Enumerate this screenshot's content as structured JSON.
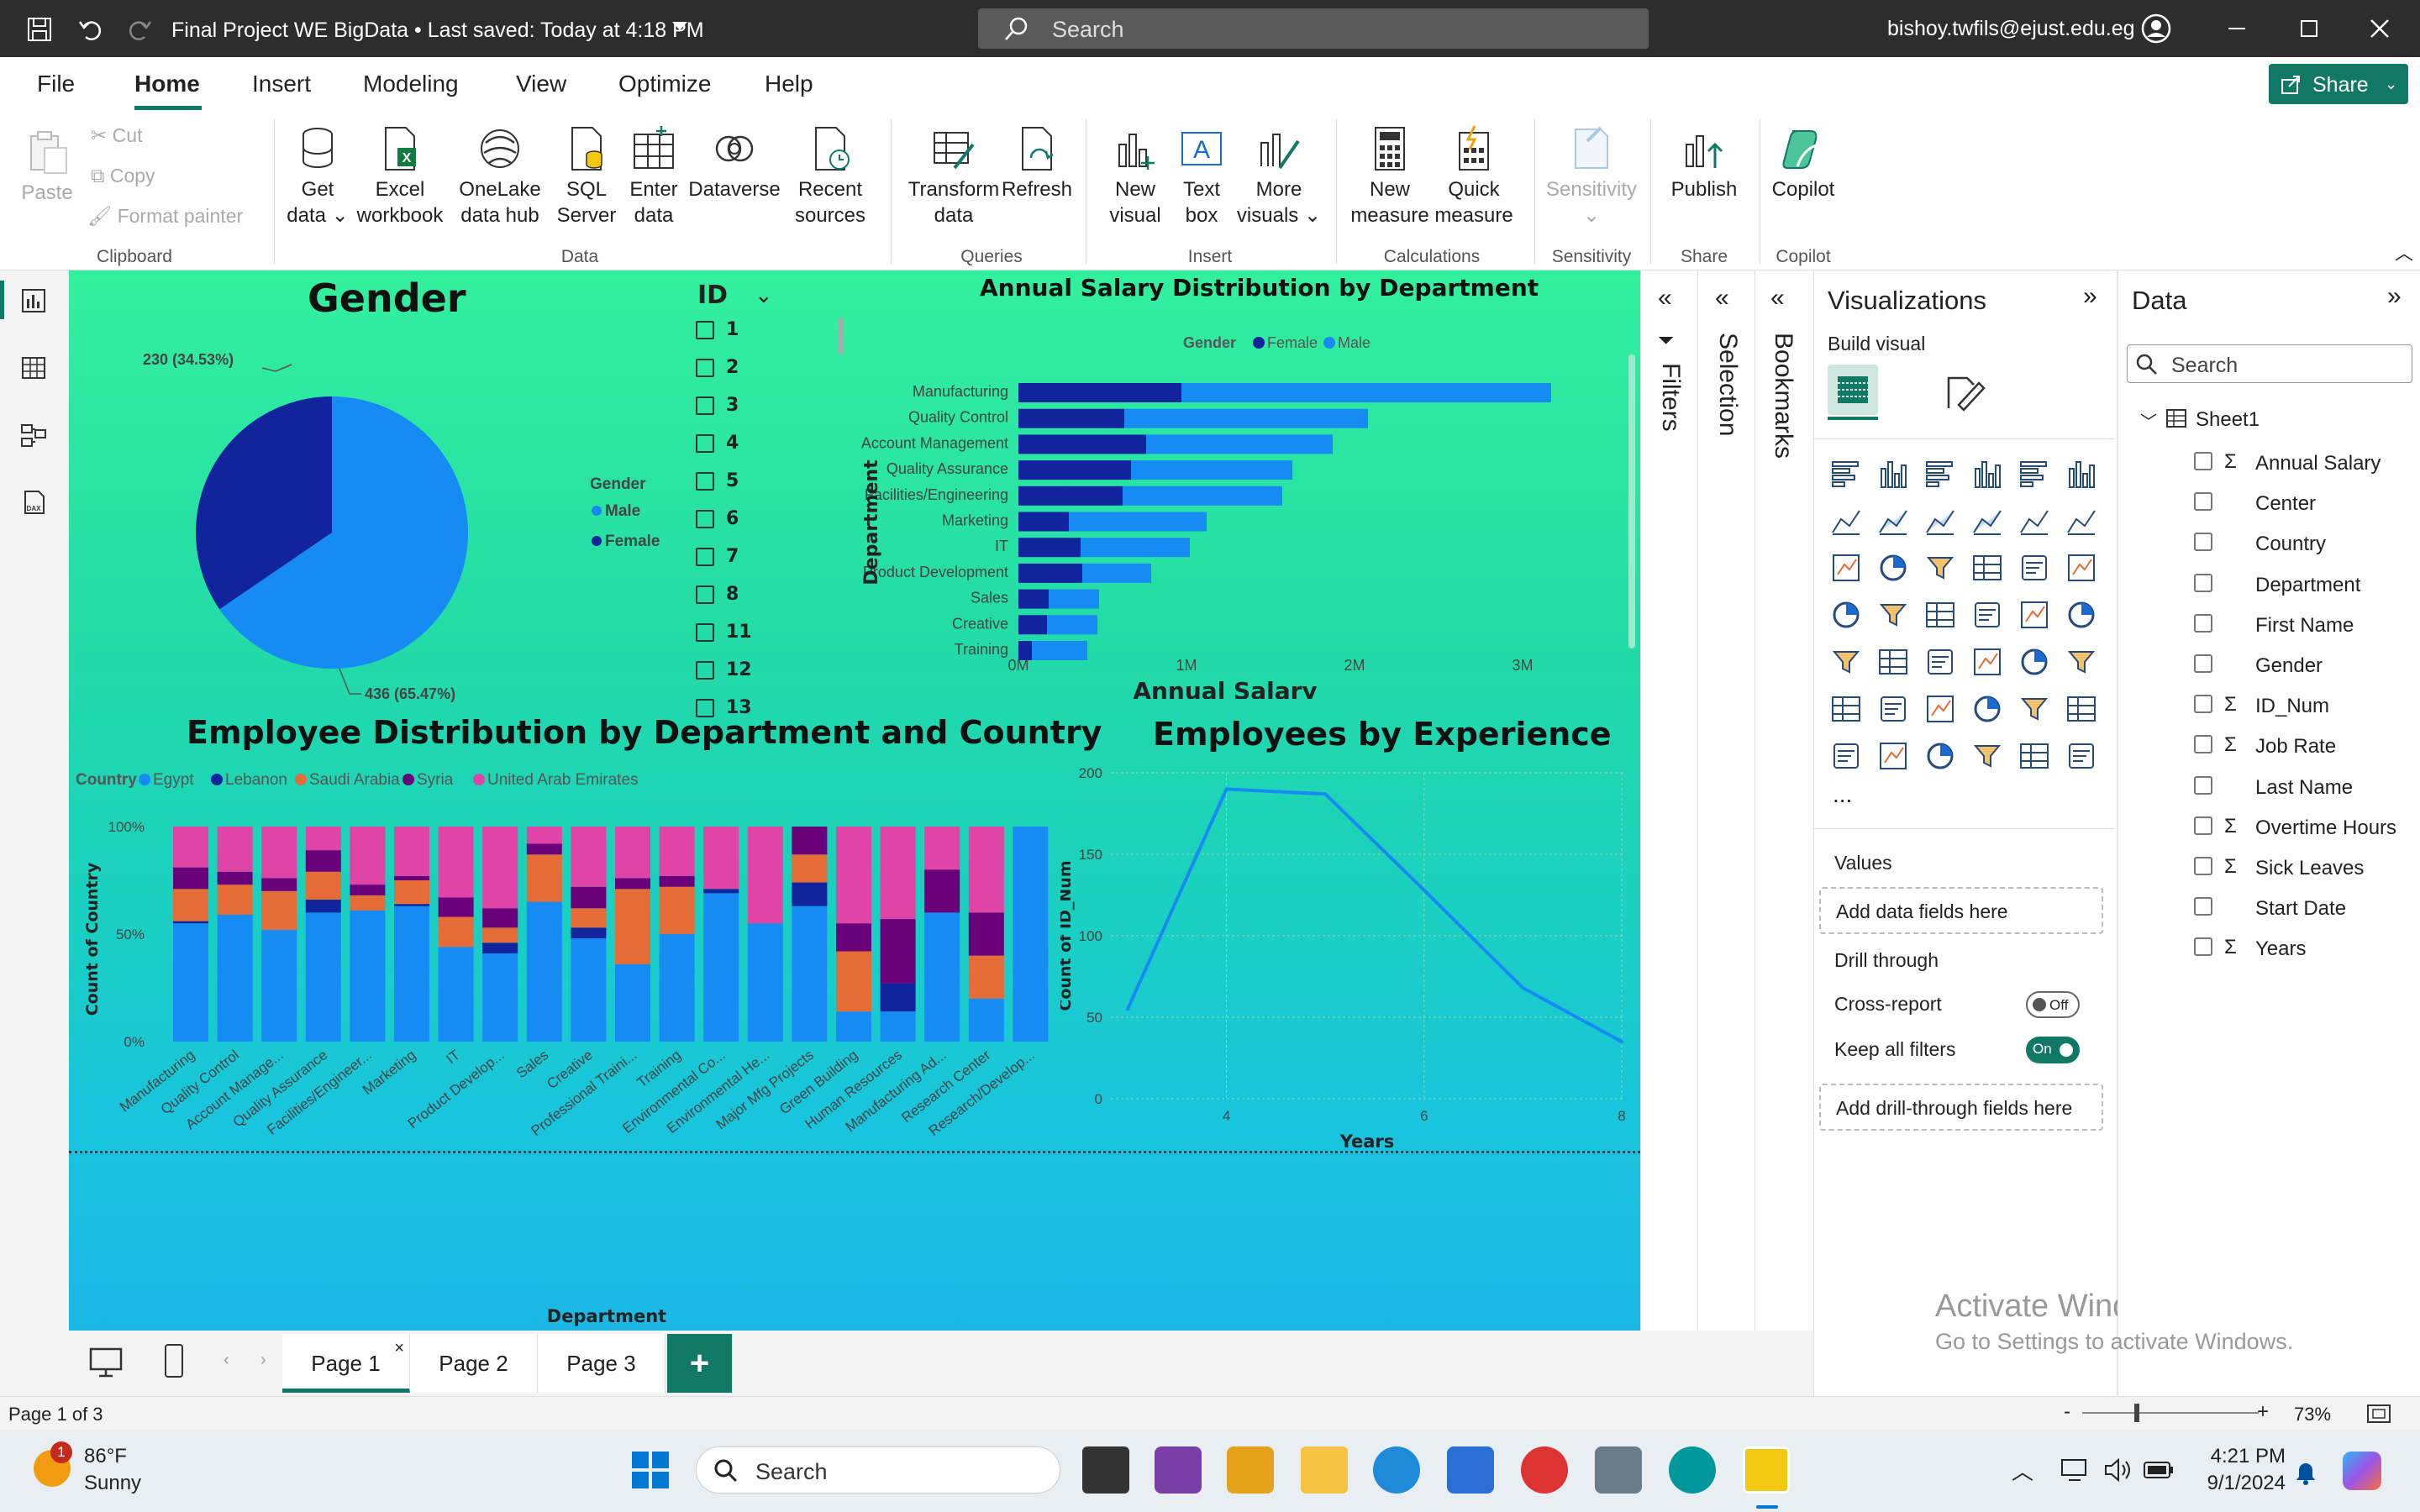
{
  "window": {
    "title": "Final Project WE BigData • Last saved: Today at 4:18 PM",
    "search": "Search",
    "user": "bishoy.twfils@ejust.edu.eg"
  },
  "menu": {
    "items": [
      "File",
      "Home",
      "Insert",
      "Modeling",
      "View",
      "Optimize",
      "Help"
    ],
    "active": "Home",
    "share": "Share"
  },
  "ribbon": {
    "clipboard": {
      "paste": "Paste",
      "cut": "Cut",
      "copy": "Copy",
      "format_painter": "Format painter",
      "group": "Clipboard"
    },
    "data": {
      "get_data": "Get data",
      "excel": "Excel workbook",
      "onelake": "OneLake data hub",
      "sql": "SQL Server",
      "enter": "Enter data",
      "dataverse": "Dataverse",
      "recent": "Recent sources",
      "group": "Data"
    },
    "queries": {
      "transform": "Transform data",
      "refresh": "Refresh",
      "group": "Queries"
    },
    "insert": {
      "new_visual": "New visual",
      "text_box": "Text box",
      "more_visuals": "More visuals",
      "group": "Insert"
    },
    "calculations": {
      "new_measure": "New measure",
      "quick_measure": "Quick measure",
      "group": "Calculations"
    },
    "sensitivity": {
      "label": "Sensitivity",
      "group": "Sensitivity"
    },
    "share": {
      "publish": "Publish",
      "group": "Share"
    },
    "copilot": {
      "label": "Copilot",
      "group": "Copilot"
    }
  },
  "report": {
    "gender_title": "Gender",
    "gender_legend_title": "Gender",
    "gender_label_female": "230 (34.53%)",
    "gender_label_male": "436 (65.47%)",
    "id_slicer": {
      "title": "ID",
      "items": [
        "1",
        "2",
        "3",
        "4",
        "5",
        "6",
        "7",
        "8",
        "11",
        "12",
        "13"
      ]
    },
    "salary_title": "Annual Salary Distribution by Department",
    "salary_legend_title": "Gender",
    "salary_ylabel": "Department",
    "salary_xlabel": "Annual Salary",
    "dist_title": "Employee Distribution by Department and Country",
    "dist_legend_title": "Country",
    "dist_ylabel": "Count of Country",
    "dist_xlabel": "Department",
    "exp_title": "Employees by Experience",
    "exp_ylabel": "Count of ID_Num",
    "exp_xlabel": "Years"
  },
  "colors": {
    "male": "#168bf3",
    "female": "#12239e",
    "egypt": "#168bf3",
    "lebanon": "#12239e",
    "saudi": "#e66c37",
    "syria": "#6b007b",
    "uae": "#e044a7"
  },
  "chart_data": [
    {
      "type": "pie",
      "title": "Gender",
      "legend_title": "Gender",
      "legend_position": "right",
      "categories": [
        "Male",
        "Female"
      ],
      "values": [
        436,
        230
      ],
      "labels": [
        "436 (65.47%)",
        "230 (34.53%)"
      ]
    },
    {
      "type": "bar",
      "orientation": "horizontal",
      "stacked": true,
      "title": "Annual Salary Distribution by Department",
      "xlabel": "Annual Salary",
      "ylabel": "Department",
      "legend_title": "Gender",
      "legend_position": "top",
      "categories": [
        "Manufacturing",
        "Quality Control",
        "Account Management",
        "Quality Assurance",
        "Facilities/Engineering",
        "Marketing",
        "IT",
        "Product Development",
        "Sales",
        "Creative",
        "Training"
      ],
      "series": [
        {
          "name": "Female",
          "values": [
            0.97,
            0.63,
            0.76,
            0.67,
            0.62,
            0.3,
            0.37,
            0.38,
            0.18,
            0.17,
            0.08
          ]
        },
        {
          "name": "Male",
          "values": [
            2.2,
            1.45,
            1.11,
            0.96,
            0.95,
            0.82,
            0.65,
            0.41,
            0.3,
            0.3,
            0.33
          ]
        }
      ],
      "x_ticks": [
        "0M",
        "1M",
        "2M",
        "3M"
      ],
      "xlim": [
        0,
        3.5
      ],
      "units": "M"
    },
    {
      "type": "bar",
      "stacked": true,
      "percent": true,
      "title": "Employee Distribution by Department and Country",
      "xlabel": "Department",
      "ylabel": "Count of Country",
      "legend_title": "Country",
      "legend_position": "top",
      "categories": [
        "Manufacturing",
        "Quality Control",
        "Account Manage...",
        "Quality Assurance",
        "Facilities/Engineer...",
        "Marketing",
        "IT",
        "Product Develop...",
        "Sales",
        "Creative",
        "Professional Traini...",
        "Training",
        "Environmental Co...",
        "Environmental He...",
        "Major Mfg Projects",
        "Green Building",
        "Human Resources",
        "Manufacturing Ad...",
        "Research Center",
        "Research/Develop..."
      ],
      "series": [
        {
          "name": "Egypt",
          "values": [
            55,
            59,
            52,
            60,
            61,
            63,
            44,
            41,
            65,
            48,
            36,
            50,
            69,
            55,
            63,
            14,
            14,
            60,
            20,
            100
          ]
        },
        {
          "name": "Lebanon",
          "values": [
            1,
            0,
            0,
            6,
            0,
            1,
            0,
            5,
            0,
            5,
            0,
            0,
            2,
            0,
            11,
            0,
            13,
            0,
            0,
            0
          ]
        },
        {
          "name": "Saudi Arabia",
          "values": [
            15,
            14,
            18,
            13,
            7,
            11,
            14,
            7,
            22,
            9,
            35,
            22,
            0,
            0,
            13,
            28,
            0,
            0,
            20,
            0
          ]
        },
        {
          "name": "Syria",
          "values": [
            10,
            6,
            6,
            10,
            5,
            2,
            9,
            9,
            5,
            10,
            5,
            5,
            0,
            0,
            13,
            13,
            30,
            20,
            20,
            0
          ]
        },
        {
          "name": "United Arab Emirates",
          "values": [
            19,
            21,
            24,
            11,
            27,
            23,
            33,
            38,
            8,
            28,
            24,
            23,
            29,
            45,
            0,
            45,
            43,
            20,
            40,
            0
          ]
        }
      ],
      "y_ticks": [
        "0%",
        "50%",
        "100%"
      ]
    },
    {
      "type": "line",
      "title": "Employees by Experience",
      "xlabel": "Years",
      "ylabel": "Count of ID_Num",
      "x": [
        3,
        4,
        5,
        6,
        7,
        8
      ],
      "y": [
        55,
        190,
        187,
        128,
        68,
        35
      ],
      "xlim": [
        3,
        8
      ],
      "ylim": [
        0,
        200
      ],
      "x_ticks": [
        "4",
        "6",
        "8"
      ],
      "y_ticks": [
        "0",
        "50",
        "100",
        "150",
        "200"
      ]
    }
  ],
  "panes": {
    "filters": "Filters",
    "selection": "Selection",
    "bookmarks": "Bookmarks"
  },
  "viz": {
    "title": "Visualizations",
    "build_visual": "Build visual",
    "values": "Values",
    "add_fields": "Add data fields here",
    "drill_through": "Drill through",
    "cross_report": "Cross-report",
    "cross_report_state": "Off",
    "keep_filters": "Keep all filters",
    "keep_filters_state": "On",
    "add_drill": "Add drill-through fields here",
    "more": "..."
  },
  "data_pane": {
    "title": "Data",
    "search": "Search",
    "table": "Sheet1",
    "fields": [
      {
        "name": "Annual Salary",
        "sigma": true
      },
      {
        "name": "Center",
        "sigma": false
      },
      {
        "name": "Country",
        "sigma": false
      },
      {
        "name": "Department",
        "sigma": false
      },
      {
        "name": "First Name",
        "sigma": false
      },
      {
        "name": "Gender",
        "sigma": false
      },
      {
        "name": "ID_Num",
        "sigma": true
      },
      {
        "name": "Job Rate",
        "sigma": true
      },
      {
        "name": "Last Name",
        "sigma": false
      },
      {
        "name": "Overtime Hours",
        "sigma": true
      },
      {
        "name": "Sick Leaves",
        "sigma": true
      },
      {
        "name": "Start Date",
        "sigma": false
      },
      {
        "name": "Years",
        "sigma": true
      }
    ]
  },
  "activate": {
    "line1": "Activate Windows",
    "line2": "Go to Settings to activate Windows."
  },
  "pages": {
    "tabs": [
      "Page 1",
      "Page 2",
      "Page 3"
    ],
    "active": "Page 1",
    "add": "+"
  },
  "status": {
    "page": "Page 1 of 3",
    "zoom": "73%"
  },
  "taskbar": {
    "temp": "86°F",
    "weather": "Sunny",
    "badge": "1",
    "search": "Search",
    "time": "4:21 PM",
    "date": "9/1/2024"
  }
}
